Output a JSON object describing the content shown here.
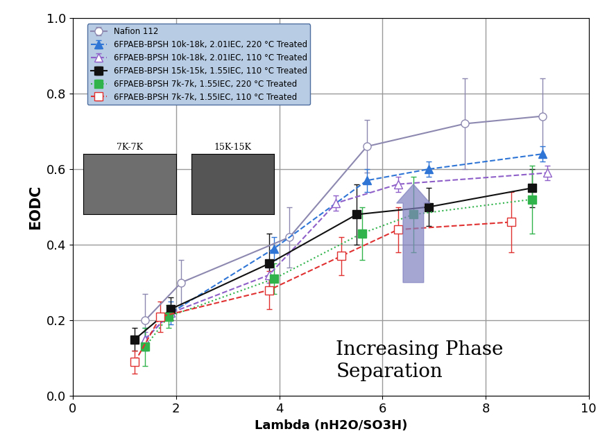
{
  "chart_data": {
    "type": "line",
    "x_label": "Lambda (nH2O/SO3H)",
    "y_label": "EODC",
    "xlim": [
      0,
      10
    ],
    "xticks": [
      0,
      2,
      4,
      6,
      8,
      10
    ],
    "ylim": [
      0,
      1
    ],
    "yticks": [
      {
        "value": 0,
        "label": "0.0"
      },
      0.2,
      0.4,
      0.6,
      0.8,
      {
        "value": 1,
        "label": "1.0"
      }
    ],
    "grid": true,
    "legend": "upper left",
    "series": [
      {
        "name": "Nafion 112",
        "color": "#8c88b0",
        "marker": "open circle",
        "line_style": "solid",
        "x": [
          1.4,
          2.1,
          4.2,
          5.7,
          7.6,
          9.1
        ],
        "values": [
          0.2,
          0.3,
          0.42,
          0.66,
          0.72,
          0.74
        ],
        "errors": [
          0.07,
          0.06,
          0.08,
          0.07,
          0.12,
          0.1
        ]
      },
      {
        "name": "6FPAEB-BPSH 10k-18k, 2.01IEC, 220 °C Treated",
        "color": "#2e75d6",
        "marker": "triangle",
        "line_style": "dashed",
        "x": [
          1.4,
          1.9,
          3.9,
          5.7,
          6.9,
          9.1
        ],
        "values": [
          0.15,
          0.22,
          0.39,
          0.57,
          0.6,
          0.64
        ],
        "errors": [
          0.03,
          0.03,
          0.03,
          0.03,
          0.02,
          0.02
        ]
      },
      {
        "name": "6FPAEB-BPSH 10k-18k, 2.01IEC, 110 °C Treated",
        "color": "#8e5fc8",
        "marker": "open triangle",
        "line_style": "dashed",
        "x": [
          1.4,
          1.9,
          3.8,
          5.1,
          6.3,
          9.2
        ],
        "values": [
          0.15,
          0.22,
          0.32,
          0.51,
          0.56,
          0.59
        ],
        "errors": [
          0.02,
          0.02,
          0.02,
          0.02,
          0.02,
          0.02
        ]
      },
      {
        "name": "6FPAEB-BPSH 15k-15k, 1.55IEC, 110 °C Treated",
        "color": "#111111",
        "marker": "square",
        "line_style": "solid",
        "x": [
          1.2,
          1.9,
          3.8,
          5.5,
          6.9,
          8.9
        ],
        "values": [
          0.15,
          0.23,
          0.35,
          0.48,
          0.5,
          0.55
        ],
        "errors": [
          0.03,
          0.03,
          0.08,
          0.08,
          0.05,
          0.05
        ]
      },
      {
        "name": "6FPAEB-BPSH 7k-7k, 1.55IEC, 220 °C Treated",
        "color": "#2fb34a",
        "marker": "square",
        "line_style": "dotted",
        "x": [
          1.4,
          1.85,
          3.9,
          5.6,
          6.6,
          8.9
        ],
        "values": [
          0.13,
          0.21,
          0.31,
          0.43,
          0.48,
          0.52
        ],
        "errors": [
          0.05,
          0.03,
          0.04,
          0.07,
          0.1,
          0.09
        ]
      },
      {
        "name": "6FPAEB-BPSH 7k-7k, 1.55IEC, 110 °C Treated",
        "color": "#e03030",
        "marker": "open square",
        "line_style": "dashed",
        "x": [
          1.2,
          1.7,
          3.8,
          5.2,
          6.3,
          8.5
        ],
        "values": [
          0.09,
          0.21,
          0.28,
          0.37,
          0.44,
          0.46
        ],
        "errors": [
          0.03,
          0.04,
          0.05,
          0.05,
          0.06,
          0.08
        ]
      }
    ],
    "annotations": [
      "Increasing Phase\nSeparation"
    ],
    "inset_labels": [
      "7K-7K",
      "15K-15K"
    ]
  }
}
